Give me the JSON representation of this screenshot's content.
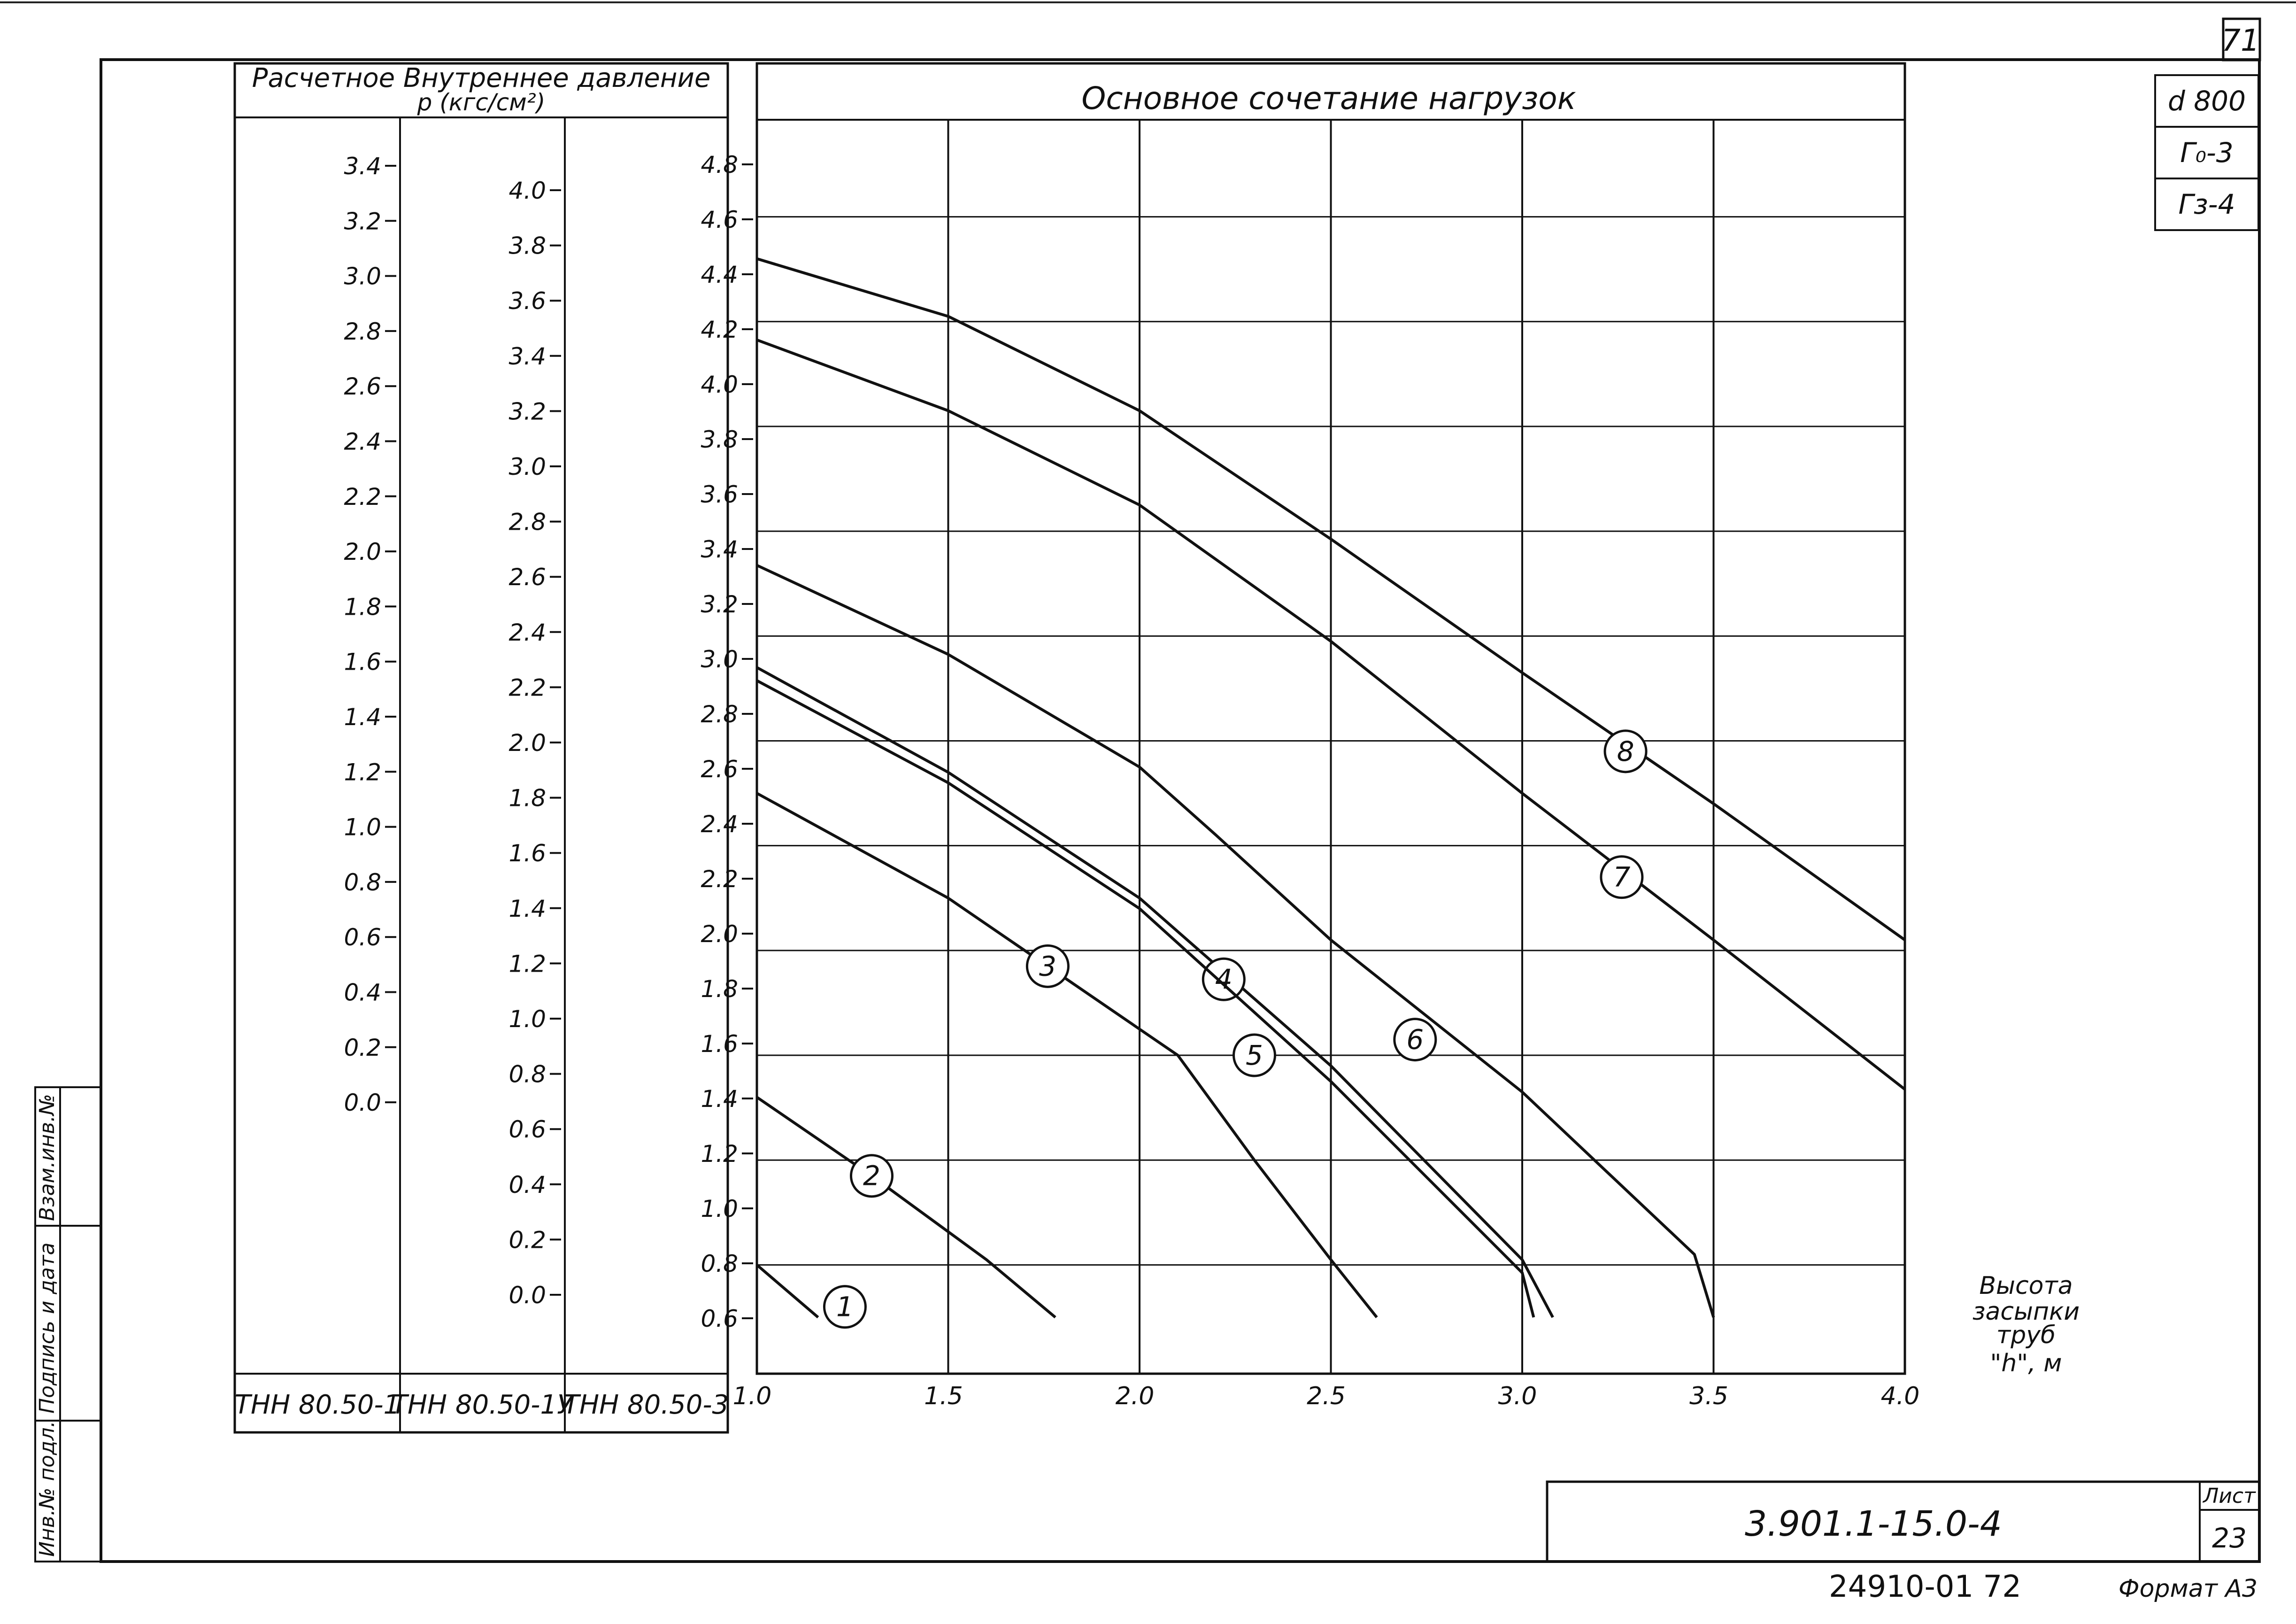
{
  "sheet": {
    "page_number": "71",
    "stamp_lines": [
      "d 800",
      "Г₀-3",
      "Гз-4"
    ],
    "side_labels": [
      "Взам.инв.№",
      "Подпись и дата",
      "Инв.№ подл."
    ],
    "document_code": "3.901.1-15.0-4",
    "sheet_label": "Лист",
    "sheet_number": "23",
    "archive_number": "24910-01 72",
    "format_label": "Формат А3"
  },
  "pressure_table": {
    "header_line1": "Расчетное  Внутреннее  давление",
    "header_line2": "p (кгс/см²)",
    "columns": [
      {
        "name": "ТНН 80.50-1",
        "ticks": [
          "3.4",
          "3.2",
          "3.0",
          "2.8",
          "2.6",
          "2.4",
          "2.2",
          "2.0",
          "1.8",
          "1.6",
          "1.4",
          "1.2",
          "1.0",
          "0.8",
          "0.6",
          "0.4",
          "0.2",
          "0.0"
        ]
      },
      {
        "name": "ТНН 80.50-1У",
        "ticks": [
          "4.0",
          "3.8",
          "3.6",
          "3.4",
          "3.2",
          "3.0",
          "2.8",
          "2.6",
          "2.4",
          "2.2",
          "2.0",
          "1.8",
          "1.6",
          "1.4",
          "1.2",
          "1.0",
          "0.8",
          "0.6",
          "0.4",
          "0.2",
          "0.0"
        ]
      },
      {
        "name": "ТНН 80.50-3",
        "ticks": [
          "4.8",
          "4.6",
          "4.4",
          "4.2",
          "4.0",
          "3.8",
          "3.6",
          "3.4",
          "3.2",
          "3.0",
          "2.8",
          "2.6",
          "2.4",
          "2.2",
          "2.0",
          "1.8",
          "1.6",
          "1.4",
          "1.2",
          "1.0",
          "0.8",
          "0.6"
        ]
      }
    ]
  },
  "chart_data": {
    "type": "line",
    "title": "Основное   сочетание   нагрузок",
    "xlabel": "Высота засыпки труб \"h\", м",
    "xlabel_lines": [
      "Высота",
      "засыпки",
      "труб",
      "\"h\", м"
    ],
    "ylabel": "p (кгс/см²)",
    "xlim": [
      1.0,
      4.0
    ],
    "ylim": [
      0.4,
      4.8
    ],
    "x_ticks": [
      "1.0",
      "1.5",
      "2.0",
      "2.5",
      "3.0",
      "3.5",
      "4.0"
    ],
    "grid": true,
    "series": [
      {
        "name": "1",
        "points": [
          [
            1.0,
            0.6
          ],
          [
            1.16,
            0.4
          ]
        ]
      },
      {
        "name": "2",
        "points": [
          [
            1.0,
            1.24
          ],
          [
            1.3,
            0.94
          ],
          [
            1.6,
            0.62
          ],
          [
            1.78,
            0.4
          ]
        ]
      },
      {
        "name": "3",
        "points": [
          [
            1.0,
            2.4
          ],
          [
            1.5,
            2.0
          ],
          [
            2.0,
            1.5
          ],
          [
            2.1,
            1.4
          ],
          [
            2.3,
            1.0
          ],
          [
            2.5,
            0.62
          ],
          [
            2.62,
            0.4
          ]
        ]
      },
      {
        "name": "4",
        "points": [
          [
            1.0,
            2.88
          ],
          [
            1.5,
            2.48
          ],
          [
            2.0,
            2.0
          ],
          [
            2.5,
            1.36
          ],
          [
            3.0,
            0.62
          ],
          [
            3.08,
            0.4
          ]
        ]
      },
      {
        "name": "5",
        "points": [
          [
            1.0,
            2.83
          ],
          [
            1.5,
            2.44
          ],
          [
            2.0,
            1.96
          ],
          [
            2.5,
            1.3
          ],
          [
            3.0,
            0.57
          ],
          [
            3.03,
            0.4
          ]
        ]
      },
      {
        "name": "6",
        "points": [
          [
            1.0,
            3.27
          ],
          [
            1.5,
            2.93
          ],
          [
            2.0,
            2.5
          ],
          [
            2.2,
            2.24
          ],
          [
            2.5,
            1.84
          ],
          [
            3.0,
            1.26
          ],
          [
            3.45,
            0.64
          ],
          [
            3.5,
            0.4
          ]
        ]
      },
      {
        "name": "7",
        "points": [
          [
            1.0,
            4.13
          ],
          [
            1.5,
            3.86
          ],
          [
            2.0,
            3.5
          ],
          [
            2.5,
            2.98
          ],
          [
            3.0,
            2.4
          ],
          [
            3.5,
            1.84
          ],
          [
            4.0,
            1.27
          ]
        ]
      },
      {
        "name": "8",
        "points": [
          [
            1.0,
            4.44
          ],
          [
            1.5,
            4.22
          ],
          [
            2.0,
            3.86
          ],
          [
            2.5,
            3.37
          ],
          [
            3.0,
            2.86
          ],
          [
            3.5,
            2.36
          ],
          [
            4.0,
            1.84
          ]
        ]
      }
    ]
  }
}
